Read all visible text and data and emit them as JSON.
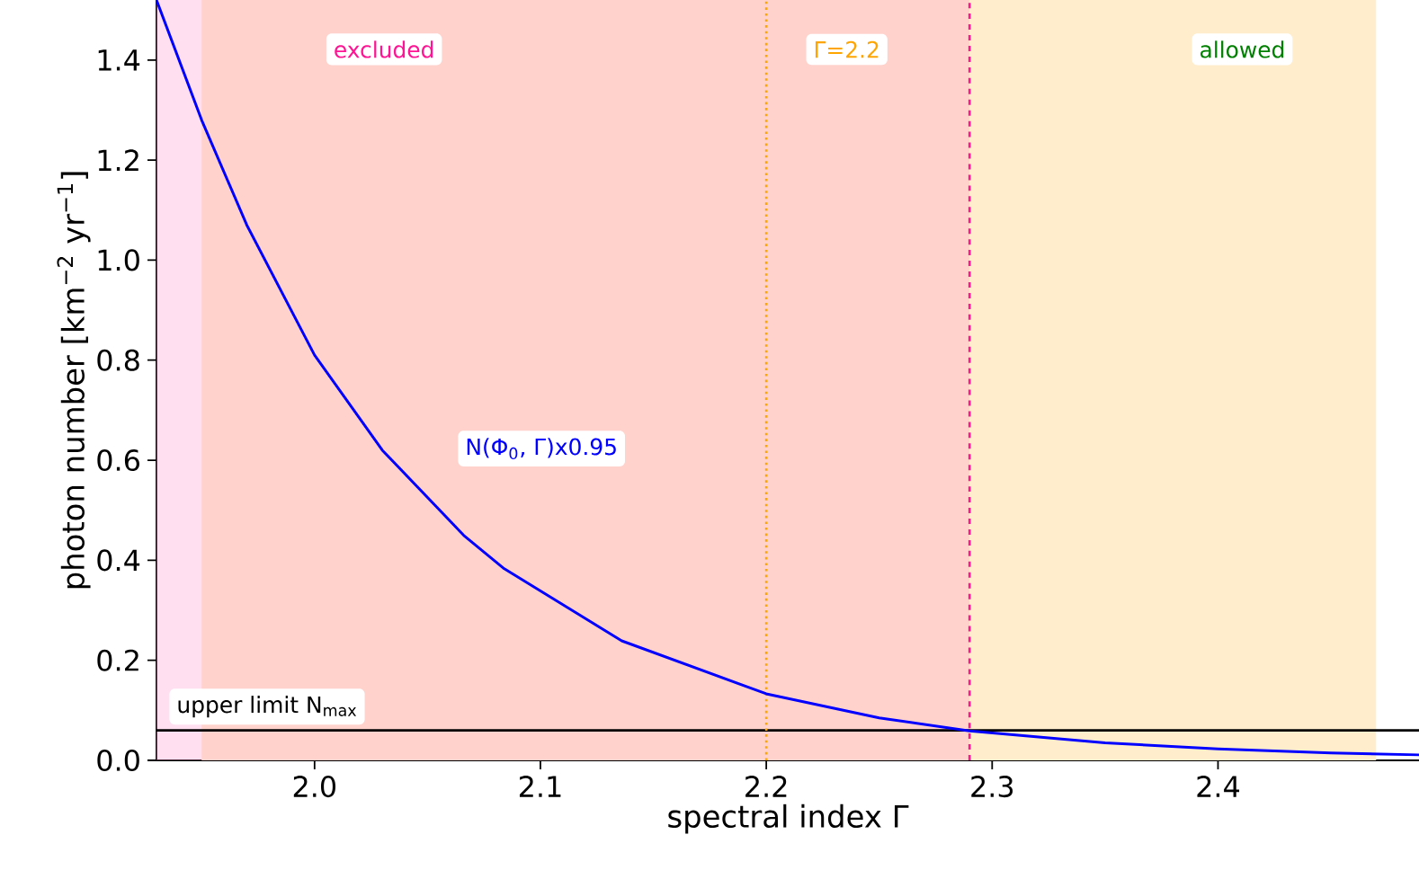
{
  "chart_data": {
    "type": "line",
    "xlabel": "spectral index Γ",
    "ylabel": "photon number [km$^{−2}$ yr$^{−1}$]",
    "x": [
      1.93,
      1.95,
      1.97,
      2.0,
      2.03,
      2.066,
      2.084,
      2.136,
      2.2,
      2.25,
      2.29,
      2.35,
      2.4,
      2.45,
      2.489
    ],
    "series": [
      {
        "name": "N(Φ$_{0}$, Γ)x0.95",
        "color": "#0000ff",
        "values": [
          1.52,
          1.28,
          1.07,
          0.81,
          0.62,
          0.45,
          0.383,
          0.239,
          0.133,
          0.085,
          0.059,
          0.035,
          0.023,
          0.015,
          0.011
        ]
      }
    ],
    "xlim": [
      1.93,
      2.489
    ],
    "ylim": [
      0,
      1.52
    ],
    "xticks": [
      {
        "value": 2.0,
        "label": "2.0"
      },
      2.1,
      2.2,
      2.3,
      2.4
    ],
    "yticks": [
      {
        "value": 0,
        "label": "0.0"
      },
      0.2,
      0.4,
      0.6,
      0.8,
      {
        "value": 1.0,
        "label": "1.0"
      },
      1.2,
      1.4
    ],
    "bands": [
      {
        "axis": "x",
        "from": 1.95,
        "to": 2.47,
        "color": "#ffedcc"
      },
      {
        "axis": "x",
        "from": 1.93,
        "to": 2.29,
        "label": "excluded",
        "color": "#ff95ce"
      }
    ],
    "ref_lines": [
      {
        "axis": "y",
        "value": 0.06,
        "label": "upper limit N$_{max}$",
        "color": "#000000",
        "line_style": "solid"
      },
      {
        "axis": "x",
        "value": 2.2,
        "label": "Γ=2.2",
        "color": "#ffa500",
        "line_style": "dotted"
      },
      {
        "axis": "x",
        "value": 2.29,
        "color": "#ff1493",
        "line_style": "dashed"
      }
    ],
    "annotations": [
      "allowed"
    ],
    "grid": false,
    "marker": "none"
  }
}
